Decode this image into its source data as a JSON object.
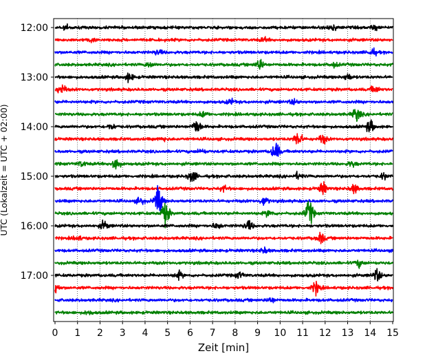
{
  "chart_data": {
    "type": "line",
    "title": "",
    "xlabel": "Zeit  [min]",
    "ylabel": "UTC (Lokalzeit = UTC + 02:00)",
    "xlim": [
      0,
      15
    ],
    "x_ticks": [
      "0",
      "1",
      "2",
      "3",
      "4",
      "5",
      "6",
      "7",
      "8",
      "9",
      "10",
      "11",
      "12",
      "13",
      "14",
      "15"
    ],
    "y_ticks": [
      "12:00",
      "13:00",
      "14:00",
      "15:00",
      "16:00",
      "17:00"
    ],
    "grid": "vertical dotted at each minute",
    "trace_colors": [
      "#000000",
      "#ff0000",
      "#0000ff",
      "#008000"
    ],
    "series": [
      {
        "start": "12:00",
        "color": "#000000",
        "events": [
          {
            "x": 12.3,
            "amp": 0.45
          },
          {
            "x": 14.2,
            "amp": 0.25
          },
          {
            "x": 0.5,
            "amp": 0.2
          }
        ]
      },
      {
        "start": "12:15",
        "color": "#ff0000",
        "events": [
          {
            "x": 1.6,
            "amp": 0.2
          },
          {
            "x": 9.3,
            "amp": 0.2
          }
        ]
      },
      {
        "start": "12:30",
        "color": "#0000ff",
        "events": [
          {
            "x": 4.6,
            "amp": 0.3
          },
          {
            "x": 14.1,
            "amp": 0.4
          }
        ]
      },
      {
        "start": "12:45",
        "color": "#008000",
        "events": [
          {
            "x": 4.2,
            "amp": 0.3
          },
          {
            "x": 9.1,
            "amp": 0.6
          },
          {
            "x": 12.4,
            "amp": 0.25
          }
        ]
      },
      {
        "start": "13:00",
        "color": "#000000",
        "events": [
          {
            "x": 3.3,
            "amp": 0.5
          },
          {
            "x": 13.0,
            "amp": 0.4
          }
        ]
      },
      {
        "start": "13:15",
        "color": "#ff0000",
        "events": [
          {
            "x": 0.3,
            "amp": 0.6
          },
          {
            "x": 14.2,
            "amp": 0.4
          }
        ]
      },
      {
        "start": "13:30",
        "color": "#0000ff",
        "events": [
          {
            "x": 7.8,
            "amp": 0.25
          },
          {
            "x": 10.6,
            "amp": 0.25
          }
        ]
      },
      {
        "start": "13:45",
        "color": "#008000",
        "events": [
          {
            "x": 6.6,
            "amp": 0.3
          },
          {
            "x": 13.4,
            "amp": 0.8
          }
        ]
      },
      {
        "start": "14:00",
        "color": "#000000",
        "events": [
          {
            "x": 6.3,
            "amp": 0.9
          },
          {
            "x": 14.0,
            "amp": 0.7
          },
          {
            "x": 2.5,
            "amp": 0.3
          }
        ]
      },
      {
        "start": "14:15",
        "color": "#ff0000",
        "events": [
          {
            "x": 10.8,
            "amp": 0.9
          },
          {
            "x": 11.9,
            "amp": 0.5
          },
          {
            "x": 4.8,
            "amp": 0.2
          }
        ]
      },
      {
        "start": "14:30",
        "color": "#0000ff",
        "events": [
          {
            "x": 9.8,
            "amp": 1.1
          },
          {
            "x": 6.5,
            "amp": 0.25
          }
        ]
      },
      {
        "start": "14:45",
        "color": "#008000",
        "events": [
          {
            "x": 2.7,
            "amp": 0.9
          },
          {
            "x": 1.2,
            "amp": 0.3
          },
          {
            "x": 13.2,
            "amp": 0.3
          }
        ]
      },
      {
        "start": "15:00",
        "color": "#000000",
        "events": [
          {
            "x": 6.1,
            "amp": 0.7
          },
          {
            "x": 10.8,
            "amp": 0.35
          },
          {
            "x": 14.6,
            "amp": 0.3
          }
        ]
      },
      {
        "start": "15:15",
        "color": "#ff0000",
        "events": [
          {
            "x": 11.9,
            "amp": 0.7
          },
          {
            "x": 13.3,
            "amp": 0.5
          },
          {
            "x": 7.5,
            "amp": 0.3
          }
        ]
      },
      {
        "start": "15:30",
        "color": "#0000ff",
        "events": [
          {
            "x": 4.6,
            "amp": 1.7
          },
          {
            "x": 9.3,
            "amp": 0.5
          },
          {
            "x": 3.8,
            "amp": 0.4
          }
        ]
      },
      {
        "start": "15:45",
        "color": "#008000",
        "events": [
          {
            "x": 4.9,
            "amp": 1.4
          },
          {
            "x": 11.3,
            "amp": 1.5
          },
          {
            "x": 9.5,
            "amp": 0.35
          }
        ]
      },
      {
        "start": "16:00",
        "color": "#000000",
        "events": [
          {
            "x": 2.2,
            "amp": 0.5
          },
          {
            "x": 8.6,
            "amp": 0.6
          },
          {
            "x": 7.2,
            "amp": 0.35
          }
        ]
      },
      {
        "start": "16:15",
        "color": "#ff0000",
        "events": [
          {
            "x": 11.8,
            "amp": 0.6
          },
          {
            "x": 1.0,
            "amp": 0.25
          }
        ]
      },
      {
        "start": "16:30",
        "color": "#0000ff",
        "events": [
          {
            "x": 9.3,
            "amp": 0.3
          }
        ]
      },
      {
        "start": "16:45",
        "color": "#008000",
        "events": [
          {
            "x": 13.5,
            "amp": 0.4
          }
        ]
      },
      {
        "start": "17:00",
        "color": "#000000",
        "events": [
          {
            "x": 14.3,
            "amp": 0.7
          },
          {
            "x": 5.5,
            "amp": 0.4
          },
          {
            "x": 8.2,
            "amp": 0.35
          }
        ]
      },
      {
        "start": "17:15",
        "color": "#ff0000",
        "events": [
          {
            "x": 0.0,
            "amp": 0.6
          },
          {
            "x": 11.6,
            "amp": 0.7
          }
        ]
      },
      {
        "start": "17:30",
        "color": "#0000ff",
        "events": [
          {
            "x": 9.6,
            "amp": 0.3
          }
        ]
      },
      {
        "start": "17:45",
        "color": "#008000",
        "events": [
          {
            "x": 1.5,
            "amp": 0.2
          }
        ]
      }
    ]
  }
}
